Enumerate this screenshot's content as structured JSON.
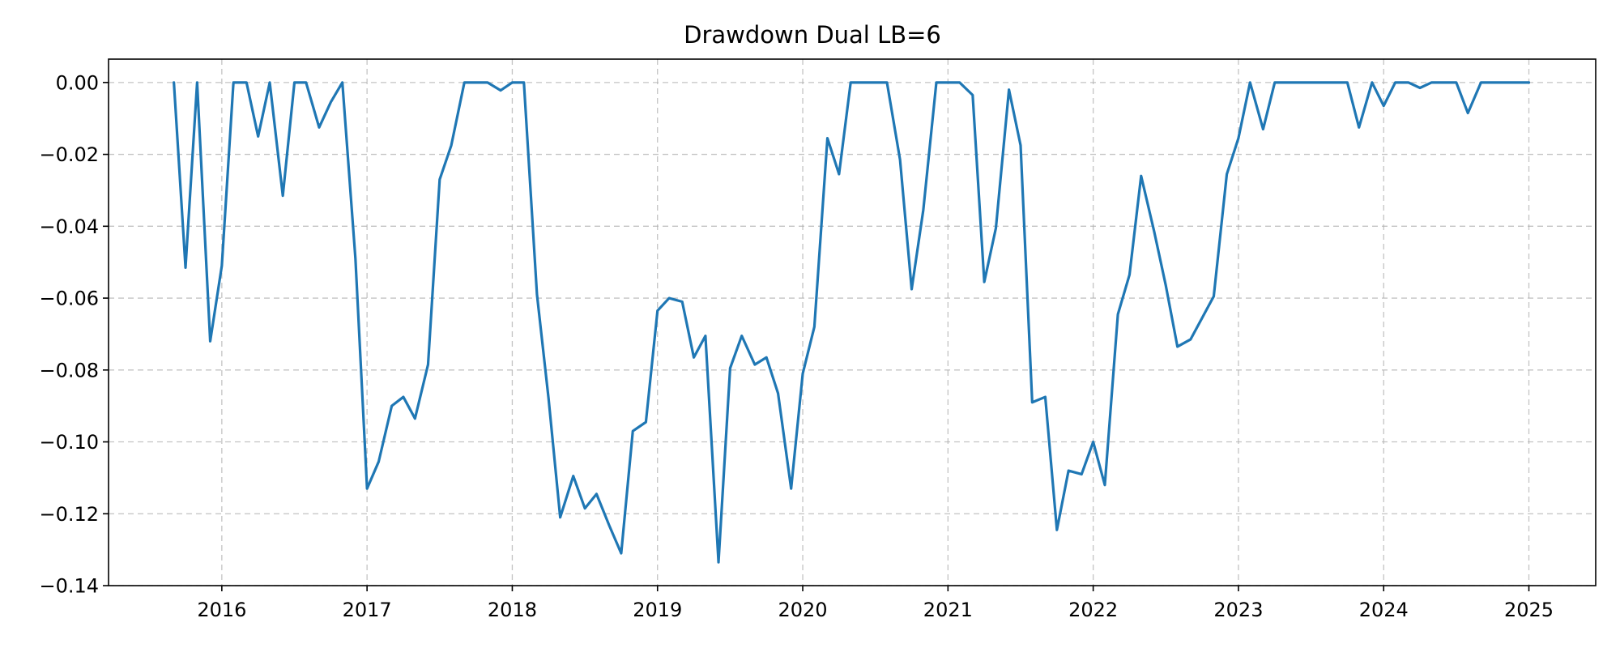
{
  "chart_data": {
    "type": "line",
    "title": "Drawdown Dual LB=6",
    "xlabel": "",
    "ylabel": "",
    "xlim": [
      2015.22,
      2025.46
    ],
    "ylim": [
      -0.14,
      0.0065
    ],
    "grid": true,
    "legend": "none",
    "x_ticks": [
      {
        "value": 2016,
        "label": "2016"
      },
      {
        "value": 2017,
        "label": "2017"
      },
      {
        "value": 2018,
        "label": "2018"
      },
      {
        "value": 2019,
        "label": "2019"
      },
      {
        "value": 2020,
        "label": "2020"
      },
      {
        "value": 2021,
        "label": "2021"
      },
      {
        "value": 2022,
        "label": "2022"
      },
      {
        "value": 2023,
        "label": "2023"
      },
      {
        "value": 2024,
        "label": "2024"
      },
      {
        "value": 2025,
        "label": "2025"
      }
    ],
    "y_ticks": [
      {
        "value": 0.0,
        "label": "0.00"
      },
      {
        "value": -0.02,
        "label": "−0.02"
      },
      {
        "value": -0.04,
        "label": "−0.04"
      },
      {
        "value": -0.06,
        "label": "−0.06"
      },
      {
        "value": -0.08,
        "label": "−0.08"
      },
      {
        "value": -0.1,
        "label": "−0.10"
      },
      {
        "value": -0.12,
        "label": "−0.12"
      },
      {
        "value": -0.14,
        "label": "−0.14"
      }
    ],
    "series": [
      {
        "color": "#1f77b4",
        "x": [
          2015.67,
          2015.75,
          2015.83,
          2015.92,
          2016.0,
          2016.08,
          2016.17,
          2016.25,
          2016.33,
          2016.42,
          2016.5,
          2016.58,
          2016.67,
          2016.75,
          2016.83,
          2016.92,
          2017.0,
          2017.08,
          2017.17,
          2017.25,
          2017.33,
          2017.42,
          2017.5,
          2017.58,
          2017.67,
          2017.75,
          2017.83,
          2017.92,
          2018.0,
          2018.08,
          2018.17,
          2018.25,
          2018.33,
          2018.42,
          2018.5,
          2018.58,
          2018.67,
          2018.75,
          2018.83,
          2018.92,
          2019.0,
          2019.08,
          2019.17,
          2019.25,
          2019.33,
          2019.42,
          2019.5,
          2019.58,
          2019.67,
          2019.75,
          2019.83,
          2019.92,
          2020.0,
          2020.08,
          2020.17,
          2020.25,
          2020.33,
          2020.42,
          2020.5,
          2020.58,
          2020.67,
          2020.75,
          2020.83,
          2020.92,
          2021.0,
          2021.08,
          2021.17,
          2021.25,
          2021.33,
          2021.42,
          2021.5,
          2021.58,
          2021.67,
          2021.75,
          2021.83,
          2021.92,
          2022.0,
          2022.08,
          2022.17,
          2022.25,
          2022.33,
          2022.42,
          2022.5,
          2022.58,
          2022.67,
          2022.75,
          2022.83,
          2022.92,
          2023.0,
          2023.08,
          2023.17,
          2023.25,
          2023.33,
          2023.42,
          2023.5,
          2023.58,
          2023.67,
          2023.75,
          2023.83,
          2023.92,
          2024.0,
          2024.08,
          2024.17,
          2024.25,
          2024.33,
          2024.42,
          2024.5,
          2024.58,
          2024.67,
          2024.75,
          2024.83,
          2024.92,
          2025.0
        ],
        "y": [
          0.0,
          -0.0515,
          0.0,
          -0.072,
          -0.051,
          0.0,
          0.0,
          -0.015,
          0.0,
          -0.0315,
          0.0,
          0.0,
          -0.0125,
          -0.0055,
          0.0,
          -0.049,
          -0.113,
          -0.1055,
          -0.09,
          -0.0875,
          -0.0935,
          -0.0785,
          -0.027,
          -0.0175,
          0.0,
          0.0,
          0.0,
          -0.0022,
          0.0,
          0.0,
          -0.059,
          -0.088,
          -0.121,
          -0.1095,
          -0.1185,
          -0.1145,
          -0.1235,
          -0.131,
          -0.097,
          -0.0945,
          -0.0635,
          -0.06,
          -0.061,
          -0.0765,
          -0.0705,
          -0.1335,
          -0.0795,
          -0.0705,
          -0.0785,
          -0.0765,
          -0.0865,
          -0.113,
          -0.081,
          -0.068,
          -0.0155,
          -0.0255,
          0.0,
          0.0,
          0.0,
          0.0,
          -0.0215,
          -0.0575,
          -0.0355,
          0.0,
          0.0,
          0.0,
          -0.0035,
          -0.0555,
          -0.0405,
          -0.002,
          -0.0175,
          -0.089,
          -0.0875,
          -0.1245,
          -0.108,
          -0.109,
          -0.1,
          -0.112,
          -0.0645,
          -0.0535,
          -0.026,
          -0.0415,
          -0.0565,
          -0.0735,
          -0.0715,
          -0.0655,
          -0.0595,
          -0.0255,
          -0.0155,
          0.0,
          -0.013,
          0.0,
          0.0,
          0.0,
          0.0,
          0.0,
          0.0,
          0.0,
          -0.0125,
          0.0,
          -0.0065,
          0.0,
          0.0,
          -0.0015,
          0.0,
          0.0,
          0.0,
          -0.0085,
          0.0,
          0.0,
          0.0,
          0.0,
          0.0
        ]
      }
    ]
  }
}
